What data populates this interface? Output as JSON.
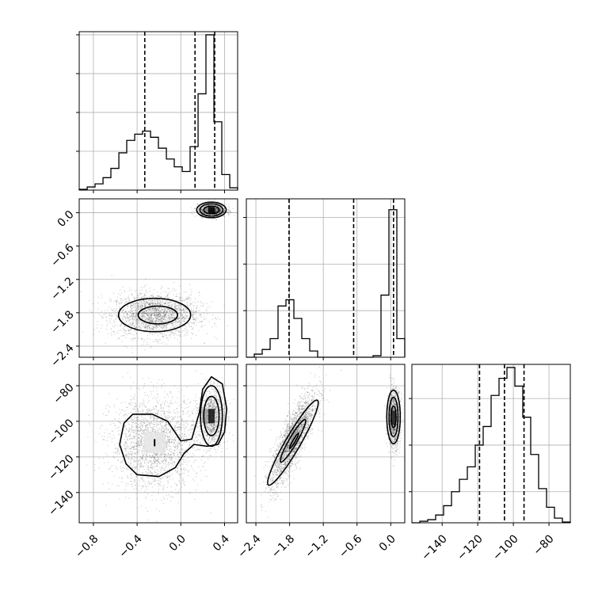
{
  "chart_data": {
    "type": "corner",
    "title": "",
    "grid": true,
    "parameters": [
      {
        "xlim": [
          -0.93,
          0.52
        ],
        "ticks": [
          -0.8,
          -0.4,
          0.0,
          0.4
        ],
        "tick_labels": [
          "−0.8",
          "−0.4",
          "0.0",
          "0.4"
        ]
      },
      {
        "xlim": [
          -2.57,
          0.25
        ],
        "ticks": [
          -2.4,
          -1.8,
          -1.2,
          -0.6,
          0.0
        ],
        "tick_labels": [
          "−2.4",
          "−1.8",
          "−1.2",
          "−0.6",
          "0.0"
        ]
      },
      {
        "xlim": [
          -157,
          -68
        ],
        "ticks": [
          -140,
          -120,
          -100,
          -80
        ],
        "tick_labels": [
          "−140",
          "−120",
          "−100",
          "−80"
        ]
      }
    ],
    "diagonal": [
      {
        "bin_edges": [
          -0.93,
          -0.857,
          -0.785,
          -0.712,
          -0.64,
          -0.567,
          -0.495,
          -0.422,
          -0.35,
          -0.277,
          -0.205,
          -0.132,
          -0.06,
          0.013,
          0.085,
          0.158,
          0.23,
          0.303,
          0.375,
          0.448,
          0.52
        ],
        "counts": [
          0.005,
          0.02,
          0.04,
          0.08,
          0.14,
          0.24,
          0.32,
          0.36,
          0.38,
          0.34,
          0.27,
          0.2,
          0.15,
          0.12,
          0.28,
          0.62,
          1.0,
          0.44,
          0.1,
          0.015
        ],
        "quantiles": [
          -0.33,
          0.13,
          0.31
        ],
        "ylim": [
          0,
          1.02
        ],
        "yticks": [
          0.25,
          0.5,
          0.75,
          1.0
        ]
      },
      {
        "bin_edges": [
          -2.57,
          -2.429,
          -2.288,
          -2.147,
          -2.006,
          -1.865,
          -1.724,
          -1.583,
          -1.442,
          -1.301,
          -1.16,
          -1.019,
          -0.878,
          -0.737,
          -0.596,
          -0.455,
          -0.314,
          -0.173,
          -0.032,
          0.109,
          0.25
        ],
        "counts": [
          0.0,
          0.02,
          0.05,
          0.12,
          0.33,
          0.37,
          0.25,
          0.12,
          0.04,
          0.0,
          0.0,
          0.0,
          0.0,
          0.0,
          0.0,
          0.0,
          0.01,
          0.4,
          0.95,
          0.12
        ],
        "quantiles": [
          -1.81,
          -0.66,
          0.05
        ],
        "ylim": [
          0,
          1.02
        ],
        "yticks": [
          0.3,
          0.6,
          0.9
        ]
      },
      {
        "bin_edges": [
          -157,
          -152.55,
          -148.1,
          -143.65,
          -139.2,
          -134.75,
          -130.3,
          -125.85,
          -121.4,
          -116.95,
          -112.5,
          -108.05,
          -103.6,
          -99.15,
          -94.7,
          -90.25,
          -85.8,
          -81.35,
          -76.9,
          -72.45,
          -68
        ],
        "counts": [
          0.0,
          0.01,
          0.02,
          0.05,
          0.11,
          0.2,
          0.28,
          0.36,
          0.5,
          0.62,
          0.82,
          0.93,
          1.0,
          0.88,
          0.68,
          0.44,
          0.22,
          0.1,
          0.03,
          0.005
        ],
        "quantiles": [
          -119,
          -105,
          -94
        ],
        "ylim": [
          0,
          1.02
        ],
        "yticks": [
          0.2,
          0.5,
          0.8
        ]
      }
    ],
    "pairs": [
      {
        "row": 1,
        "col": 0,
        "ylim": [
          -2.6,
          0.25
        ],
        "yticks": [
          0.0,
          -0.6,
          -1.2,
          -1.8,
          -2.4
        ],
        "ytick_labels": [
          "0.0",
          "−0.6",
          "−1.2",
          "−1.8",
          "−2.4"
        ],
        "modes": [
          {
            "cx": -0.24,
            "cy": -1.83,
            "sx": 0.2,
            "sy": 0.2,
            "rho": 0.0,
            "n": 2200
          },
          {
            "cx": 0.28,
            "cy": 0.05,
            "sx": 0.065,
            "sy": 0.055,
            "rho": 0.0,
            "n": 1000
          }
        ],
        "contours": [
          {
            "cx": -0.24,
            "cy": -1.84,
            "rx": 0.33,
            "ry": 0.3
          },
          {
            "cx": -0.21,
            "cy": -1.84,
            "rx": 0.18,
            "ry": 0.16
          },
          {
            "cx": 0.28,
            "cy": 0.05,
            "rx": 0.135,
            "ry": 0.14
          },
          {
            "cx": 0.28,
            "cy": 0.05,
            "rx": 0.105,
            "ry": 0.11
          },
          {
            "cx": 0.28,
            "cy": 0.05,
            "rx": 0.07,
            "ry": 0.07
          }
        ],
        "density_patches": [
          {
            "x": 0.28,
            "y": 0.05,
            "w": 0.06,
            "h": 0.11,
            "shade": "#000000"
          },
          {
            "x": 0.23,
            "y": 0.05,
            "w": 0.04,
            "h": 0.11,
            "shade": "#888888"
          }
        ]
      },
      {
        "row": 2,
        "col": 0,
        "ylim": [
          -157,
          -68
        ],
        "yticks": [
          -80,
          -100,
          -120,
          -140
        ],
        "ytick_labels": [
          "−80",
          "−100",
          "−120",
          "−140"
        ],
        "modes": [
          {
            "cx": -0.24,
            "cy": -112,
            "sx": 0.2,
            "sy": 13,
            "rho": 0.0,
            "n": 2200
          },
          {
            "cx": 0.28,
            "cy": -97,
            "sx": 0.06,
            "sy": 8,
            "rho": 0.0,
            "n": 1200
          }
        ],
        "contours": [],
        "density_patches": [
          {
            "x": 0.28,
            "y": -97,
            "w": 0.06,
            "h": 8,
            "shade": "#111111"
          },
          {
            "x": 0.22,
            "y": -97,
            "w": 0.05,
            "h": 8,
            "shade": "#9a9a9a"
          },
          {
            "x": -0.24,
            "y": -112,
            "w": 0.2,
            "h": 12,
            "shade": "#e6e6e6"
          }
        ]
      },
      {
        "row": 2,
        "col": 1,
        "ylim": [
          -157,
          -68
        ],
        "modes": [
          {
            "cx": -1.75,
            "cy": -110,
            "sx": 0.2,
            "sy": 13,
            "rho": 0.82,
            "n": 2200
          },
          {
            "cx": 0.05,
            "cy": -98,
            "sx": 0.055,
            "sy": 8,
            "rho": 0.0,
            "n": 1200
          }
        ],
        "contours": [
          {
            "cx": 0.05,
            "cy": -97.5,
            "rx": 0.12,
            "ry": 15
          },
          {
            "cx": 0.05,
            "cy": -97.5,
            "rx": 0.08,
            "ry": 11
          },
          {
            "cx": 0.05,
            "cy": -97.5,
            "rx": 0.045,
            "ry": 6
          }
        ],
        "density_patches": [
          {
            "x": 0.05,
            "y": -98,
            "w": 0.07,
            "h": 8,
            "shade": "#222222"
          },
          {
            "x": -1.73,
            "y": -110,
            "w": 0.1,
            "h": 8,
            "shade": "#9a9a9a"
          }
        ]
      }
    ]
  }
}
